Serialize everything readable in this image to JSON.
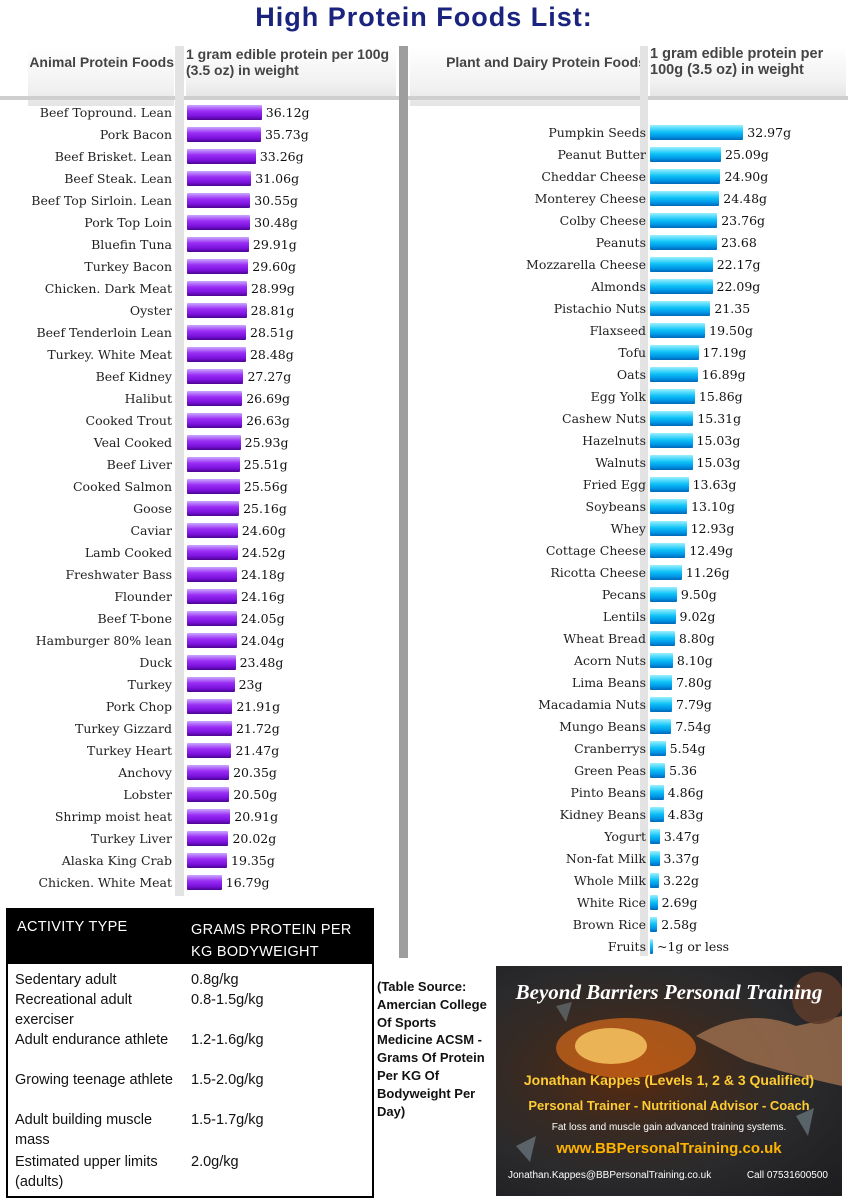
{
  "title": "High Protein Foods List:",
  "header": {
    "animal_label": "Animal Protein Foods",
    "unit_label": "1 gram edible protein per 100g (3.5 oz) in weight",
    "plant_label": "Plant and Dairy Protein Foods",
    "unit_label_right": "1 gram edible protein per 100g (3.5 oz) in weight"
  },
  "colors": {
    "title": "#1a237e",
    "animal_bar": "#8a1cf0",
    "plant_bar": "#11b6f5"
  },
  "chart_data": [
    {
      "type": "bar",
      "orientation": "horizontal",
      "categories": [
        "Beef Topround. Lean",
        "Pork Bacon",
        "Beef Brisket. Lean",
        "Beef Steak. Lean",
        "Beef Top Sirloin. Lean",
        "Pork Top Loin",
        "Bluefin Tuna",
        "Turkey Bacon",
        "Chicken. Dark Meat",
        "Oyster",
        "Beef Tenderloin  Lean",
        "Turkey. White Meat",
        "Beef Kidney",
        "Halibut",
        "Cooked Trout",
        "Veal Cooked",
        "Beef Liver",
        "Cooked Salmon",
        "Goose",
        "Caviar",
        "Lamb Cooked",
        "Freshwater Bass",
        "Flounder",
        "Beef T-bone",
        "Hamburger 80% lean",
        "Duck",
        "Turkey",
        "Pork Chop",
        "Turkey Gizzard",
        "Turkey Heart",
        "Anchovy",
        "Lobster",
        "Shrimp moist heat",
        "Turkey Liver",
        "Alaska King Crab",
        "Chicken. White Meat"
      ],
      "values": [
        36.12,
        35.73,
        33.26,
        31.06,
        30.55,
        30.48,
        29.91,
        29.6,
        28.99,
        28.81,
        28.51,
        28.48,
        27.27,
        26.69,
        26.63,
        25.93,
        25.51,
        25.56,
        25.16,
        24.6,
        24.52,
        24.18,
        24.16,
        24.05,
        24.04,
        23.48,
        23,
        21.91,
        21.72,
        21.47,
        20.35,
        20.5,
        20.91,
        20.02,
        19.35,
        16.79
      ],
      "value_labels": [
        "36.12g",
        "35.73g",
        "33.26g",
        "31.06g",
        "30.55g",
        "30.48g",
        "29.91g",
        "29.60g",
        "28.99g",
        "28.81g",
        "28.51g",
        "28.48g",
        "27.27g",
        "26.69g",
        "26.63g",
        "25.93g",
        "25.51g",
        "25.56g",
        "25.16g",
        "24.60g",
        "24.52g",
        "24.18g",
        "24.16g",
        "24.05g",
        "24.04g",
        "23.48g",
        "23g",
        "21.91g",
        "21.72g",
        "21.47g",
        "20.35g",
        "20.50g",
        "20.91g",
        "20.02g",
        "19.35g",
        "16.79g"
      ]
    },
    {
      "type": "bar",
      "orientation": "horizontal",
      "categories": [
        "Pumpkin Seeds",
        "Peanut Butter",
        "Cheddar Cheese",
        "Monterey Cheese",
        "Colby Cheese",
        "Peanuts",
        "Mozzarella Cheese",
        "Almonds",
        "Pistachio Nuts",
        "Flaxseed",
        "Tofu",
        "Oats",
        "Egg Yolk",
        "Cashew Nuts",
        "Hazelnuts",
        "Walnuts",
        "Fried Egg",
        "Soybeans",
        "Whey",
        "Cottage Cheese",
        "Ricotta Cheese",
        "Pecans",
        "Lentils",
        "Wheat Bread",
        "Acorn Nuts",
        "Lima Beans",
        "Macadamia Nuts",
        "Mungo Beans",
        "Cranberrys",
        "Green Peas",
        "Pinto Beans",
        "Kidney Beans",
        "Yogurt",
        "Non-fat Milk",
        "Whole Milk",
        "White Rice",
        "Brown Rice",
        "Fruits"
      ],
      "values": [
        32.97,
        25.09,
        24.9,
        24.48,
        23.76,
        23.68,
        22.17,
        22.09,
        21.35,
        19.5,
        17.19,
        16.89,
        15.86,
        15.31,
        15.03,
        15.03,
        13.63,
        13.1,
        12.93,
        12.49,
        11.26,
        9.5,
        9.02,
        8.8,
        8.1,
        7.8,
        7.79,
        7.54,
        5.54,
        5.36,
        4.86,
        4.83,
        3.47,
        3.37,
        3.22,
        2.69,
        2.58,
        1
      ],
      "value_labels": [
        "32.97g",
        "25.09g",
        "24.90g",
        "24.48g",
        "23.76g",
        "23.68",
        "22.17g",
        "22.09g",
        "21.35",
        "19.50g",
        "17.19g",
        "16.89g",
        "15.86g",
        "15.31g",
        "15.03g",
        "15.03g",
        "13.63g",
        "13.10g",
        "12.93g",
        "12.49g",
        "11.26g",
        "9.50g",
        "9.02g",
        "8.80g",
        "8.10g",
        "7.80g",
        "7.79g",
        "7.54g",
        "5.54g",
        "5.36",
        "4.86g",
        "4.83g",
        "3.47g",
        "3.37g",
        "3.22g",
        "2.69g",
        "2.58g",
        "~1g or less"
      ]
    }
  ],
  "activity_table": {
    "header_col1": "ACTIVITY TYPE",
    "header_col2": "GRAMS PROTEIN PER KG BODYWEIGHT",
    "rows": [
      {
        "activity": "Sedentary adult",
        "grams": "0.8g/kg"
      },
      {
        "activity": "Recreational adult exerciser",
        "grams": "0.8-1.5g/kg"
      },
      {
        "activity": "Adult endurance athlete",
        "grams": "1.2-1.6g/kg"
      },
      {
        "activity": "Growing teenage athlete",
        "grams": "1.5-2.0g/kg"
      },
      {
        "activity": "Adult building muscle mass",
        "grams": "1.5-1.7g/kg"
      },
      {
        "activity": "Estimated upper limits (adults)",
        "grams": "2.0g/kg"
      }
    ]
  },
  "source_note": "(Table Source: Amercian College Of Sports Medicine ACSM - Grams Of Protein Per KG Of Bodyweight Per Day)",
  "ad": {
    "title": "Beyond Barriers Personal Training",
    "name": "Jonathan Kappes (Levels 1, 2 & 3 Qualified)",
    "role": "Personal Trainer - Nutritional Advisor - Coach",
    "tagline": "Fat loss and muscle gain advanced training systems.",
    "website": "www.BBPersonalTraining.co.uk",
    "email": "Jonathan.Kappes@BBPersonalTraining.co.uk",
    "phone": "Call 07531600500"
  }
}
